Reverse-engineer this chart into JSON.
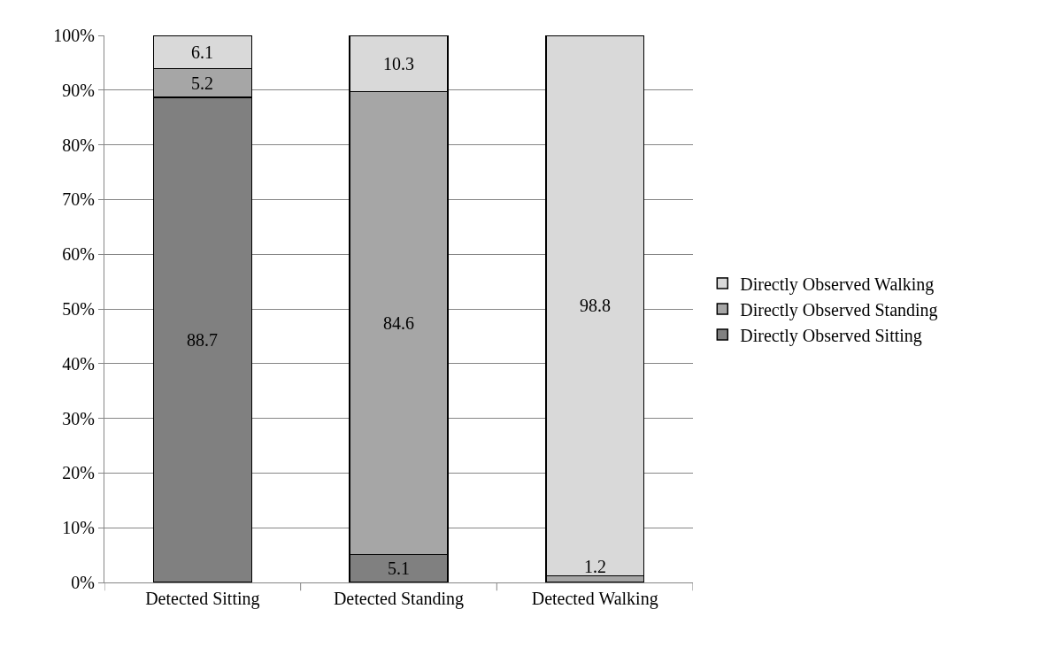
{
  "chart_data": {
    "type": "bar",
    "stacked": true,
    "categories": [
      "Detected Sitting",
      "Detected Standing",
      "Detected Walking"
    ],
    "series": [
      {
        "name": "Directly Observed Sitting",
        "color": "#808080",
        "values": [
          88.7,
          5.1,
          0
        ],
        "value_labels": [
          "88.7",
          "5.1",
          null
        ]
      },
      {
        "name": "Directly Observed Standing",
        "color": "#a6a6a6",
        "values": [
          5.2,
          84.6,
          1.2
        ],
        "value_labels": [
          "5.2",
          "84.6",
          "1.2"
        ]
      },
      {
        "name": "Directly Observed Walking",
        "color": "#d9d9d9",
        "values": [
          6.1,
          10.3,
          98.8
        ],
        "value_labels": [
          "6.1",
          "10.3",
          "98.8"
        ]
      }
    ],
    "ylim": [
      0,
      100
    ],
    "yticks": [
      {
        "value": 0,
        "label": "0%"
      },
      {
        "value": 10,
        "label": "10%"
      },
      {
        "value": 20,
        "label": "20%"
      },
      {
        "value": 30,
        "label": "30%"
      },
      {
        "value": 40,
        "label": "40%"
      },
      {
        "value": 50,
        "label": "50%"
      },
      {
        "value": 60,
        "label": "60%"
      },
      {
        "value": 70,
        "label": "70%"
      },
      {
        "value": 80,
        "label": "80%"
      },
      {
        "value": 90,
        "label": "90%"
      },
      {
        "value": 100,
        "label": "100%"
      }
    ],
    "grid": "y",
    "legend": "right"
  }
}
